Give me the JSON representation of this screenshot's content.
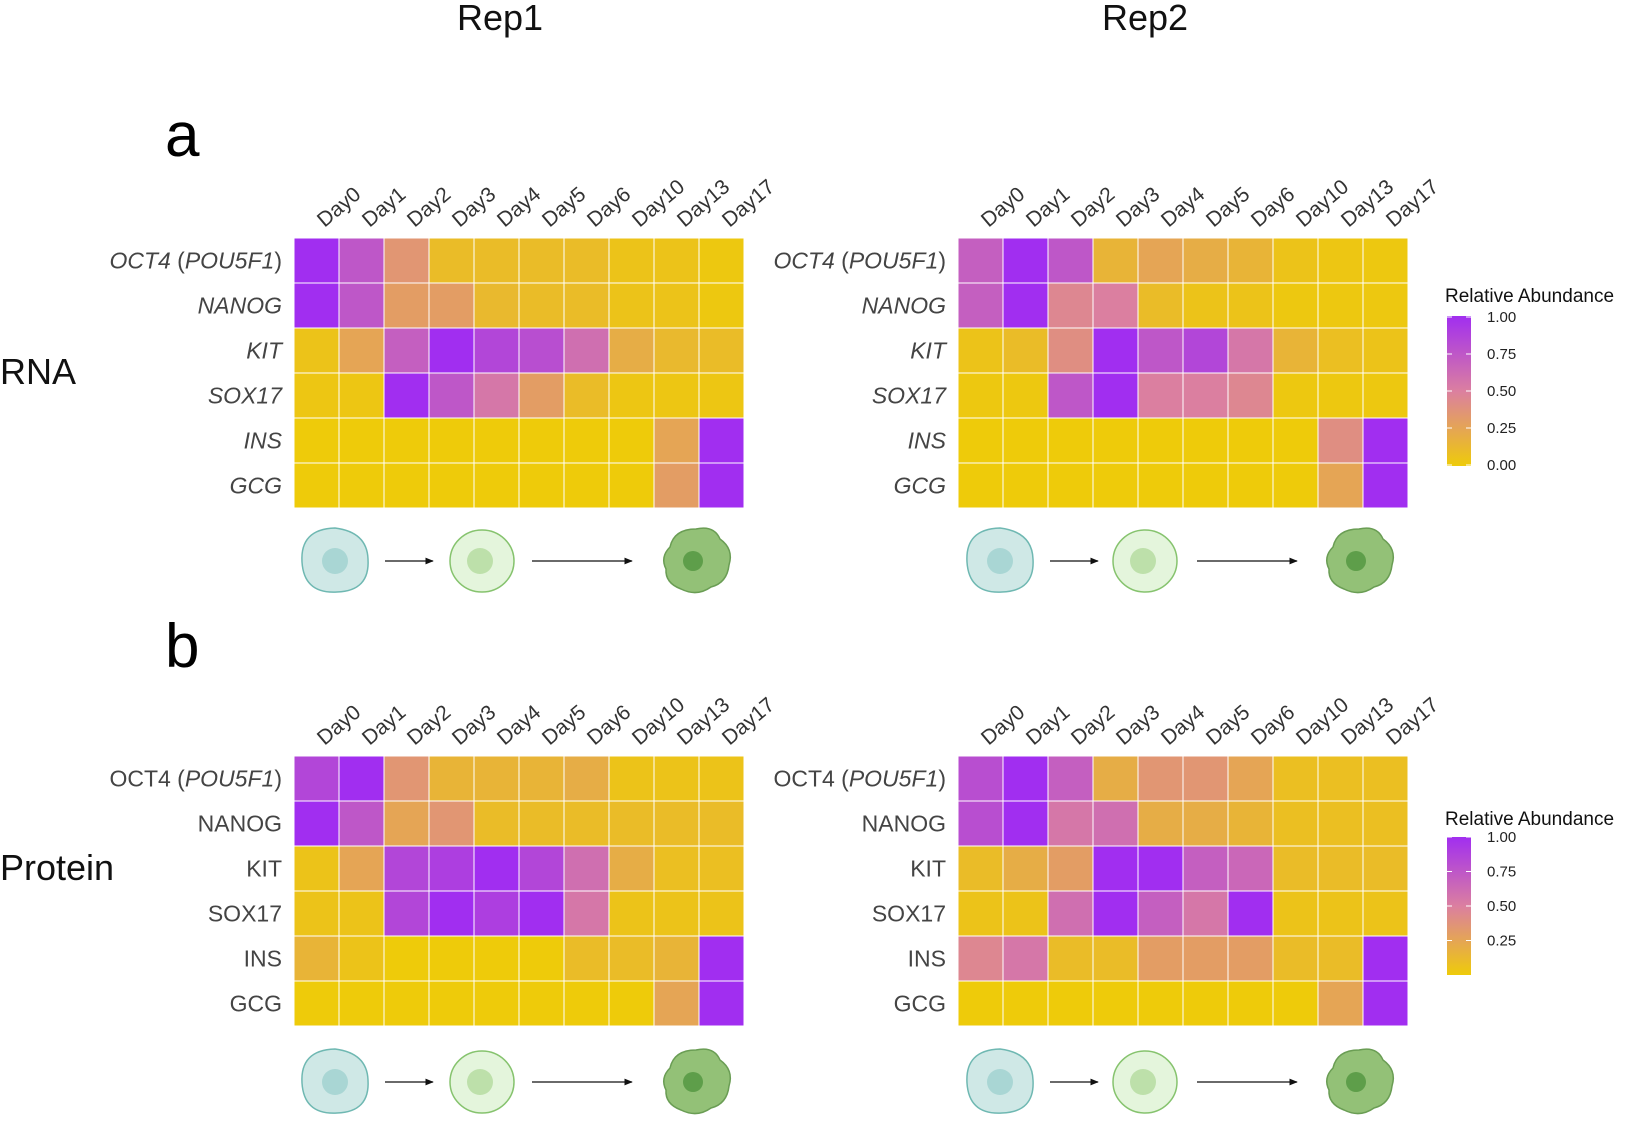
{
  "titles": {
    "rep1": "Rep1",
    "rep2": "Rep2",
    "panel_a": "a",
    "panel_b": "b",
    "side_rna": "RNA",
    "side_protein": "Protein"
  },
  "colors": {
    "low": "#eecb0a",
    "mid": "#db7fa0",
    "high": "#a12ef0",
    "cell_early_fill": "#cfe8e6",
    "cell_early_nucleus": "#a9d6d4",
    "cell_early_stroke": "#6fb8b2",
    "cell_mid_fill": "#e4f5dc",
    "cell_mid_nucleus": "#bde0aa",
    "cell_mid_stroke": "#86c36e",
    "cell_late_fill": "#93c177",
    "cell_late_nucleus": "#5e9e4a",
    "cell_late_stroke": "#6a9d54"
  },
  "cell_icons": [
    "stem-cell-icon",
    "endoderm-cell-icon",
    "beta-cell-icon"
  ],
  "chart_data": [
    {
      "type": "heatmap",
      "title": "Rep1",
      "panel": "a",
      "modality": "RNA",
      "xlabel": "",
      "ylabel": "",
      "columns": [
        "Day0",
        "Day1",
        "Day2",
        "Day3",
        "Day4",
        "Day5",
        "Day6",
        "Day10",
        "Day13",
        "Day17"
      ],
      "rows": [
        {
          "gene": "OCT4",
          "suffix": " (",
          "alias": "POU5F1",
          "close": ")"
        },
        {
          "gene": "NANOG"
        },
        {
          "gene": "KIT"
        },
        {
          "gene": "SOX17"
        },
        {
          "gene": "INS"
        },
        {
          "gene": "GCG"
        }
      ],
      "italic_labels": true,
      "values": [
        [
          1.0,
          0.75,
          0.35,
          0.1,
          0.1,
          0.1,
          0.1,
          0.05,
          0.05,
          0.02
        ],
        [
          1.0,
          0.75,
          0.3,
          0.3,
          0.12,
          0.1,
          0.1,
          0.05,
          0.05,
          0.02
        ],
        [
          0.05,
          0.25,
          0.7,
          1.0,
          0.85,
          0.8,
          0.6,
          0.2,
          0.12,
          0.1
        ],
        [
          0.03,
          0.03,
          1.0,
          0.75,
          0.55,
          0.3,
          0.1,
          0.03,
          0.03,
          0.03
        ],
        [
          0.0,
          0.0,
          0.0,
          0.0,
          0.0,
          0.0,
          0.0,
          0.0,
          0.25,
          1.0
        ],
        [
          0.0,
          0.0,
          0.0,
          0.0,
          0.0,
          0.0,
          0.0,
          0.0,
          0.3,
          1.0
        ]
      ]
    },
    {
      "type": "heatmap",
      "title": "Rep2",
      "panel": "a",
      "modality": "RNA",
      "xlabel": "",
      "ylabel": "",
      "columns": [
        "Day0",
        "Day1",
        "Day2",
        "Day3",
        "Day4",
        "Day5",
        "Day6",
        "Day10",
        "Day13",
        "Day17"
      ],
      "rows": [
        {
          "gene": "OCT4",
          "suffix": " (",
          "alias": "POU5F1",
          "close": ")"
        },
        {
          "gene": "NANOG"
        },
        {
          "gene": "KIT"
        },
        {
          "gene": "SOX17"
        },
        {
          "gene": "INS"
        },
        {
          "gene": "GCG"
        }
      ],
      "italic_labels": true,
      "values": [
        [
          0.7,
          1.0,
          0.75,
          0.15,
          0.25,
          0.2,
          0.15,
          0.05,
          0.03,
          0.02
        ],
        [
          0.7,
          1.0,
          0.45,
          0.5,
          0.1,
          0.05,
          0.05,
          0.02,
          0.02,
          0.02
        ],
        [
          0.05,
          0.1,
          0.4,
          1.0,
          0.75,
          0.85,
          0.55,
          0.15,
          0.08,
          0.05
        ],
        [
          0.02,
          0.02,
          0.75,
          1.0,
          0.5,
          0.5,
          0.45,
          0.02,
          0.02,
          0.02
        ],
        [
          0.0,
          0.0,
          0.0,
          0.0,
          0.0,
          0.0,
          0.0,
          0.0,
          0.4,
          1.0
        ],
        [
          0.0,
          0.0,
          0.0,
          0.0,
          0.0,
          0.0,
          0.0,
          0.0,
          0.25,
          1.0
        ]
      ],
      "legend": {
        "title": "Relative Abundance",
        "ticks": [
          "1.00",
          "0.75",
          "0.50",
          "0.25",
          "0.00"
        ],
        "range": [
          0,
          1
        ]
      }
    },
    {
      "type": "heatmap",
      "title": "Rep1",
      "panel": "b",
      "modality": "Protein",
      "xlabel": "",
      "ylabel": "",
      "columns": [
        "Day0",
        "Day1",
        "Day2",
        "Day3",
        "Day4",
        "Day5",
        "Day6",
        "Day10",
        "Day13",
        "Day17"
      ],
      "rows": [
        {
          "gene": "OCT4",
          "suffix": " (",
          "alias": "POU5F1",
          "close": ")"
        },
        {
          "gene": "NANOG"
        },
        {
          "gene": "KIT"
        },
        {
          "gene": "SOX17"
        },
        {
          "gene": "INS"
        },
        {
          "gene": "GCG"
        }
      ],
      "italic_labels": false,
      "values": [
        [
          0.85,
          1.0,
          0.35,
          0.15,
          0.15,
          0.15,
          0.2,
          0.05,
          0.05,
          0.05
        ],
        [
          1.0,
          0.75,
          0.25,
          0.35,
          0.1,
          0.1,
          0.1,
          0.1,
          0.1,
          0.1
        ],
        [
          0.05,
          0.25,
          0.85,
          0.9,
          1.0,
          0.85,
          0.6,
          0.2,
          0.08,
          0.08
        ],
        [
          0.05,
          0.05,
          0.85,
          1.0,
          0.9,
          1.0,
          0.55,
          0.05,
          0.05,
          0.05
        ],
        [
          0.15,
          0.05,
          0.0,
          0.0,
          0.0,
          0.0,
          0.1,
          0.1,
          0.15,
          1.0
        ],
        [
          0.0,
          0.0,
          0.0,
          0.0,
          0.0,
          0.0,
          0.0,
          0.0,
          0.25,
          1.0
        ]
      ]
    },
    {
      "type": "heatmap",
      "title": "Rep2",
      "panel": "b",
      "modality": "Protein",
      "xlabel": "",
      "ylabel": "",
      "columns": [
        "Day0",
        "Day1",
        "Day2",
        "Day3",
        "Day4",
        "Day5",
        "Day6",
        "Day10",
        "Day13",
        "Day17"
      ],
      "rows": [
        {
          "gene": "OCT4",
          "suffix": " (",
          "alias": "POU5F1",
          "close": ")"
        },
        {
          "gene": "NANOG"
        },
        {
          "gene": "KIT"
        },
        {
          "gene": "SOX17"
        },
        {
          "gene": "INS"
        },
        {
          "gene": "GCG"
        }
      ],
      "italic_labels": false,
      "values": [
        [
          0.8,
          1.0,
          0.7,
          0.2,
          0.35,
          0.35,
          0.25,
          0.08,
          0.08,
          0.08
        ],
        [
          0.8,
          1.0,
          0.55,
          0.6,
          0.2,
          0.2,
          0.15,
          0.08,
          0.08,
          0.08
        ],
        [
          0.1,
          0.2,
          0.3,
          1.0,
          1.0,
          0.7,
          0.65,
          0.1,
          0.1,
          0.1
        ],
        [
          0.05,
          0.05,
          0.6,
          1.0,
          0.7,
          0.55,
          1.0,
          0.05,
          0.05,
          0.05
        ],
        [
          0.45,
          0.55,
          0.1,
          0.1,
          0.3,
          0.3,
          0.3,
          0.1,
          0.1,
          1.0
        ],
        [
          0.0,
          0.0,
          0.0,
          0.0,
          0.0,
          0.0,
          0.0,
          0.0,
          0.25,
          1.0
        ]
      ],
      "legend": {
        "title": "Relative Abundance",
        "ticks": [
          "1.00",
          "0.75",
          "0.50",
          "0.25"
        ],
        "range": [
          0,
          1
        ]
      }
    }
  ]
}
